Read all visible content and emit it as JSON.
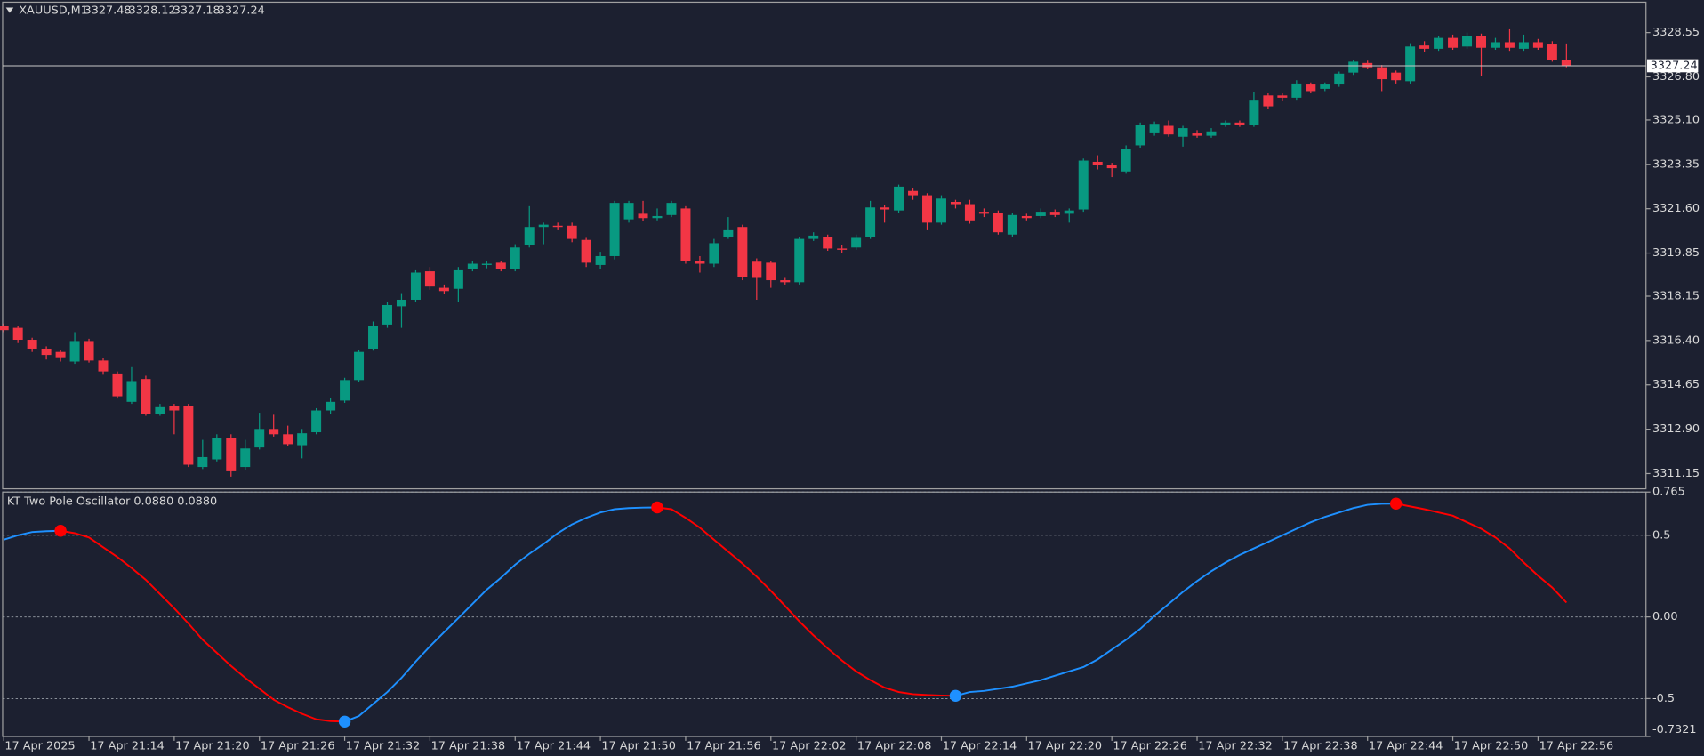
{
  "chart_data": [
    {
      "type": "candlestick",
      "title": "XAUUSD,M1",
      "categories": [
        "17 Apr 2025",
        null,
        null,
        null,
        null,
        null,
        "17 Apr 21:14",
        null,
        null,
        null,
        null,
        null,
        "17 Apr 21:20",
        null,
        null,
        null,
        null,
        null,
        "17 Apr 21:26",
        null,
        null,
        null,
        null,
        null,
        "17 Apr 21:32",
        null,
        null,
        null,
        null,
        null,
        "17 Apr 21:38",
        null,
        null,
        null,
        null,
        null,
        "17 Apr 21:44",
        null,
        null,
        null,
        null,
        null,
        "17 Apr 21:50",
        null,
        null,
        null,
        null,
        null,
        "17 Apr 21:56",
        null,
        null,
        null,
        null,
        null,
        "17 Apr 22:02",
        null,
        null,
        null,
        null,
        null,
        "17 Apr 22:08",
        null,
        null,
        null,
        null,
        null,
        "17 Apr 22:14",
        null,
        null,
        null,
        null,
        null,
        "17 Apr 22:20",
        null,
        null,
        null,
        null,
        null,
        "17 Apr 22:26",
        null,
        null,
        null,
        null,
        null,
        "17 Apr 22:32",
        null,
        null,
        null,
        null,
        null,
        "17 Apr 22:38",
        null,
        null,
        null,
        null,
        null,
        "17 Apr 22:44",
        null,
        null,
        null,
        null,
        null,
        "17 Apr 22:50",
        null,
        null,
        null,
        null,
        null,
        "17 Apr 22:56",
        null,
        null
      ],
      "open": [
        3316.98,
        3316.9,
        3316.43,
        3316.08,
        3315.95,
        3315.57,
        3316.38,
        3315.61,
        3315.1,
        3313.98,
        3314.88,
        3313.51,
        3313.81,
        3313.81,
        3311.41,
        3311.71,
        3312.57,
        3311.41,
        3312.18,
        3312.91,
        3312.7,
        3312.27,
        3312.78,
        3313.64,
        3314.03,
        3314.84,
        3316.08,
        3317.03,
        3317.75,
        3318.01,
        3319.13,
        3318.48,
        3318.44,
        3319.21,
        3319.38,
        3319.47,
        3319.21,
        3320.15,
        3320.88,
        3320.93,
        3320.93,
        3320.37,
        3319.38,
        3319.73,
        3321.18,
        3321.4,
        3321.23,
        3321.35,
        3321.61,
        3319.55,
        3319.43,
        3320.5,
        3320.88,
        3319.51,
        3319.47,
        3318.78,
        3318.7,
        3320.41,
        3320.5,
        3320.03,
        3320.07,
        3320.5,
        3321.65,
        3321.53,
        3322.3,
        3322.13,
        3321.05,
        3321.87,
        3321.78,
        3321.48,
        3321.44,
        3320.58,
        3321.31,
        3321.31,
        3321.48,
        3321.4,
        3321.57,
        3323.45,
        3323.33,
        3323.07,
        3324.1,
        3324.61,
        3324.87,
        3324.44,
        3324.57,
        3324.48,
        3324.91,
        3325.0,
        3324.91,
        3326.07,
        3326.07,
        3325.98,
        3326.5,
        3326.33,
        3326.5,
        3326.97,
        3327.35,
        3327.18,
        3326.97,
        3326.63,
        3328.04,
        3327.91,
        3328.34,
        3328.0,
        3328.43,
        3327.95,
        3328.17,
        3327.91,
        3328.17,
        3328.08,
        3327.48
      ],
      "high": [
        3317.07,
        3316.98,
        3316.51,
        3316.17,
        3316.04,
        3316.73,
        3316.47,
        3315.7,
        3315.18,
        3315.35,
        3315.01,
        3313.9,
        3313.9,
        3313.9,
        3312.48,
        3312.7,
        3312.7,
        3312.48,
        3313.55,
        3313.47,
        3313.04,
        3312.91,
        3313.73,
        3314.15,
        3314.93,
        3316.04,
        3317.15,
        3317.93,
        3318.27,
        3319.17,
        3319.3,
        3318.61,
        3319.3,
        3319.55,
        3319.55,
        3319.55,
        3320.2,
        3321.7,
        3321.05,
        3321.05,
        3321.05,
        3320.45,
        3319.9,
        3321.91,
        3321.91,
        3321.91,
        3321.61,
        3321.91,
        3321.7,
        3319.73,
        3320.41,
        3321.27,
        3320.97,
        3319.64,
        3319.55,
        3318.87,
        3320.5,
        3320.67,
        3320.58,
        3320.15,
        3320.58,
        3321.91,
        3321.74,
        3322.55,
        3322.43,
        3322.21,
        3322.13,
        3321.95,
        3321.95,
        3321.61,
        3321.53,
        3321.44,
        3321.4,
        3321.61,
        3321.57,
        3321.61,
        3323.58,
        3323.71,
        3323.41,
        3324.1,
        3325.0,
        3325.04,
        3325.08,
        3324.87,
        3324.7,
        3324.78,
        3325.08,
        3325.08,
        3326.2,
        3326.15,
        3326.15,
        3326.67,
        3326.58,
        3326.58,
        3327.01,
        3327.48,
        3327.44,
        3327.27,
        3327.05,
        3328.13,
        3328.21,
        3328.43,
        3328.47,
        3328.55,
        3328.51,
        3328.34,
        3328.68,
        3328.47,
        3328.3,
        3328.21,
        3328.12
      ],
      "low": [
        3316.73,
        3316.3,
        3315.95,
        3315.65,
        3315.57,
        3315.48,
        3315.53,
        3315.05,
        3314.11,
        3313.9,
        3313.43,
        3313.43,
        3312.7,
        3311.41,
        3311.33,
        3311.63,
        3311.03,
        3311.28,
        3312.1,
        3312.61,
        3312.23,
        3311.75,
        3312.7,
        3313.51,
        3313.94,
        3314.75,
        3316.0,
        3316.9,
        3316.9,
        3317.93,
        3318.4,
        3318.23,
        3317.93,
        3319.13,
        3319.25,
        3319.13,
        3319.13,
        3320.07,
        3320.2,
        3320.75,
        3320.28,
        3319.3,
        3319.21,
        3319.6,
        3321.05,
        3321.1,
        3321.14,
        3321.27,
        3319.43,
        3319.08,
        3319.3,
        3320.41,
        3318.78,
        3318.01,
        3318.48,
        3318.61,
        3318.61,
        3320.33,
        3319.94,
        3319.85,
        3319.98,
        3320.41,
        3321.05,
        3321.44,
        3321.95,
        3320.75,
        3320.97,
        3321.61,
        3321.01,
        3321.27,
        3320.58,
        3320.5,
        3321.14,
        3321.23,
        3321.27,
        3321.05,
        3321.48,
        3323.15,
        3322.85,
        3322.98,
        3324.01,
        3324.48,
        3324.44,
        3324.05,
        3324.4,
        3324.4,
        3324.83,
        3324.83,
        3324.83,
        3325.55,
        3325.85,
        3325.9,
        3326.15,
        3326.24,
        3326.41,
        3326.88,
        3327.1,
        3326.24,
        3326.54,
        3326.54,
        3327.78,
        3327.83,
        3327.87,
        3327.91,
        3326.84,
        3327.87,
        3327.83,
        3327.83,
        3327.87,
        3327.4,
        3327.18
      ],
      "close": [
        3316.81,
        3316.43,
        3316.08,
        3315.83,
        3315.74,
        3316.38,
        3315.61,
        3315.18,
        3314.2,
        3314.8,
        3313.51,
        3313.77,
        3313.64,
        3311.5,
        3311.8,
        3312.57,
        3311.24,
        3312.14,
        3312.91,
        3312.7,
        3312.31,
        3312.74,
        3313.64,
        3313.98,
        3314.84,
        3315.95,
        3316.98,
        3317.8,
        3318.01,
        3319.08,
        3318.53,
        3318.35,
        3319.17,
        3319.43,
        3319.43,
        3319.21,
        3320.07,
        3320.88,
        3320.97,
        3320.88,
        3320.41,
        3319.47,
        3319.73,
        3321.83,
        3321.83,
        3321.23,
        3321.31,
        3321.83,
        3319.55,
        3319.43,
        3320.24,
        3320.75,
        3318.91,
        3318.87,
        3318.78,
        3318.7,
        3320.41,
        3320.54,
        3320.03,
        3319.98,
        3320.45,
        3321.65,
        3321.57,
        3322.47,
        3322.13,
        3321.05,
        3322.0,
        3321.78,
        3321.14,
        3321.4,
        3320.67,
        3321.35,
        3321.23,
        3321.48,
        3321.35,
        3321.53,
        3323.5,
        3323.33,
        3323.2,
        3323.97,
        3324.91,
        3324.95,
        3324.53,
        3324.78,
        3324.48,
        3324.65,
        3325.0,
        3324.91,
        3325.9,
        3325.64,
        3325.98,
        3326.54,
        3326.24,
        3326.5,
        3326.93,
        3327.4,
        3327.18,
        3326.71,
        3326.67,
        3328.0,
        3327.91,
        3328.34,
        3327.95,
        3328.43,
        3327.95,
        3328.17,
        3327.95,
        3328.17,
        3327.95,
        3327.48,
        3327.24
      ],
      "up_color": "#089981",
      "down_color": "#f23645",
      "ylim": [
        3310.55,
        3329.75
      ],
      "yticks": [
        3328.55,
        {
          "value": 3326.8,
          "label": "3326.80"
        },
        {
          "value": 3325.1,
          "label": "3325.10"
        },
        3323.35,
        {
          "value": 3321.6,
          "label": "3321.60"
        },
        3319.85,
        3318.15,
        {
          "value": 3316.4,
          "label": "3316.40"
        },
        3314.65,
        {
          "value": 3312.9,
          "label": "3312.90"
        },
        3311.15
      ]
    },
    {
      "type": "line",
      "title": "KT Two Pole Oscillator 0.0880 0.0880",
      "values": [
        0.473,
        0.5,
        0.52,
        0.525,
        0.528,
        0.513,
        0.487,
        0.427,
        0.367,
        0.3,
        0.227,
        0.14,
        0.053,
        -0.04,
        -0.14,
        -0.22,
        -0.3,
        -0.373,
        -0.44,
        -0.507,
        -0.553,
        -0.593,
        -0.627,
        -0.638,
        -0.641,
        -0.607,
        -0.533,
        -0.46,
        -0.373,
        -0.273,
        -0.18,
        -0.093,
        -0.007,
        0.08,
        0.167,
        0.24,
        0.32,
        0.387,
        0.447,
        0.513,
        0.567,
        0.607,
        0.64,
        0.66,
        0.667,
        0.67,
        0.671,
        0.66,
        0.607,
        0.547,
        0.473,
        0.4,
        0.327,
        0.247,
        0.16,
        0.067,
        -0.027,
        -0.113,
        -0.193,
        -0.267,
        -0.333,
        -0.387,
        -0.433,
        -0.46,
        -0.473,
        -0.478,
        -0.481,
        -0.483,
        -0.46,
        -0.453,
        -0.44,
        -0.427,
        -0.407,
        -0.387,
        -0.36,
        -0.333,
        -0.307,
        -0.26,
        -0.2,
        -0.14,
        -0.073,
        0.007,
        0.08,
        0.153,
        0.22,
        0.28,
        0.333,
        0.38,
        0.42,
        0.46,
        0.5,
        0.54,
        0.58,
        0.613,
        0.64,
        0.667,
        0.687,
        0.693,
        0.694,
        0.677,
        0.66,
        0.64,
        0.62,
        0.58,
        0.54,
        0.487,
        0.42,
        0.333,
        0.253,
        0.18,
        0.088
      ],
      "up_color": "#1e90ff",
      "down_color": "#ff0000",
      "ylim": [
        -0.7321,
        0.765
      ],
      "yticks": [
        0.765,
        0.5,
        {
          "value": 0,
          "label": "0.00"
        },
        -0.5,
        -0.7321
      ],
      "grid": true
    }
  ]
}
